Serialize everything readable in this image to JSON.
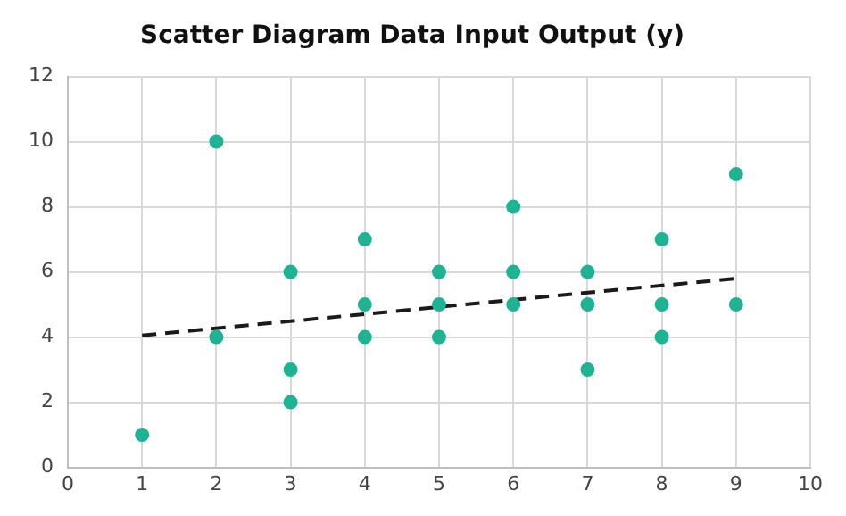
{
  "chart_data": {
    "type": "scatter",
    "title": "Scatter Diagram Data Input Output (y)",
    "series": [
      {
        "color": "#1db393",
        "marker": "circle",
        "x": [
          1,
          2,
          2,
          3,
          3,
          3,
          4,
          4,
          4,
          5,
          5,
          5,
          6,
          6,
          6,
          7,
          7,
          7,
          8,
          8,
          8,
          9,
          9
        ],
        "values": [
          1,
          10,
          4,
          6,
          3,
          2,
          7,
          5,
          4,
          6,
          5,
          4,
          8,
          6,
          5,
          6,
          5,
          3,
          7,
          5,
          4,
          9,
          5
        ]
      },
      {
        "type": "line",
        "color": "#1a1a1a",
        "line_style": "dashed",
        "marker": "none",
        "x": [
          1,
          9
        ],
        "values": [
          4.05,
          5.8
        ]
      }
    ],
    "xlim": [
      0,
      10
    ],
    "xticks": [
      0,
      1,
      2,
      3,
      4,
      5,
      6,
      7,
      8,
      9,
      10
    ],
    "ylim": [
      0,
      12
    ],
    "yticks": [
      0,
      2,
      4,
      6,
      8,
      10,
      12
    ],
    "grid": true,
    "legend": false
  }
}
